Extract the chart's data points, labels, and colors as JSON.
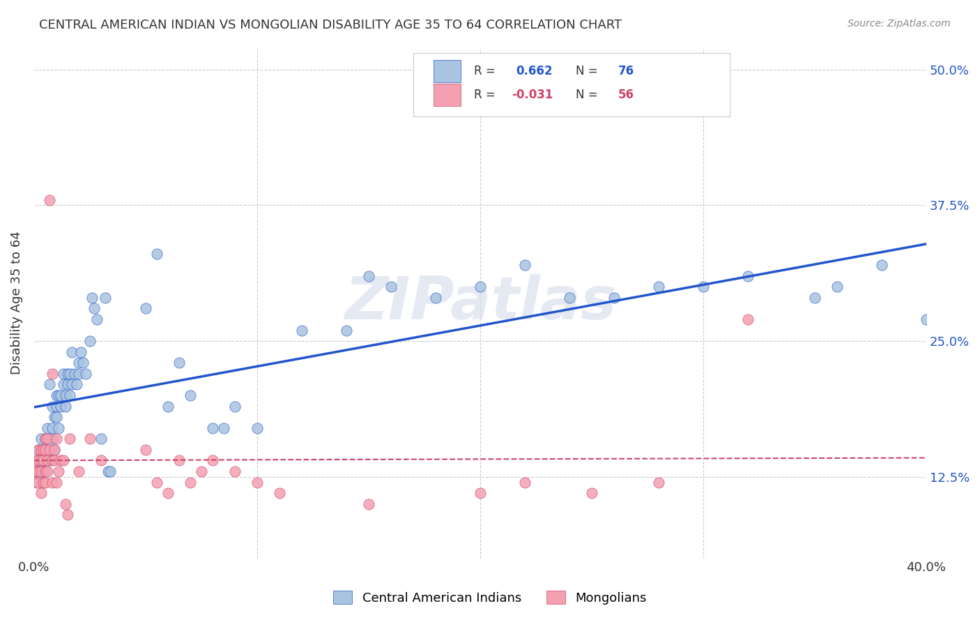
{
  "title": "CENTRAL AMERICAN INDIAN VS MONGOLIAN DISABILITY AGE 35 TO 64 CORRELATION CHART",
  "source": "Source: ZipAtlas.com",
  "ylabel": "Disability Age 35 to 64",
  "legend_label1": "Central American Indians",
  "legend_label2": "Mongolians",
  "r1": 0.662,
  "n1": 76,
  "r2": -0.031,
  "n2": 56,
  "color_blue": "#a8c4e0",
  "color_pink": "#f4a0b0",
  "line_color_blue": "#2255cc",
  "line_color_pink": "#cc4466",
  "watermark": "ZIPatlas",
  "blue_points_x": [
    0.001,
    0.002,
    0.002,
    0.003,
    0.003,
    0.004,
    0.004,
    0.005,
    0.005,
    0.005,
    0.006,
    0.006,
    0.007,
    0.007,
    0.008,
    0.008,
    0.008,
    0.009,
    0.009,
    0.01,
    0.01,
    0.01,
    0.011,
    0.011,
    0.012,
    0.012,
    0.013,
    0.013,
    0.014,
    0.014,
    0.015,
    0.015,
    0.016,
    0.016,
    0.017,
    0.017,
    0.018,
    0.019,
    0.02,
    0.02,
    0.021,
    0.022,
    0.023,
    0.025,
    0.026,
    0.027,
    0.028,
    0.03,
    0.032,
    0.033,
    0.034,
    0.05,
    0.055,
    0.06,
    0.065,
    0.07,
    0.08,
    0.085,
    0.09,
    0.1,
    0.12,
    0.14,
    0.15,
    0.16,
    0.18,
    0.2,
    0.22,
    0.24,
    0.26,
    0.28,
    0.3,
    0.32,
    0.35,
    0.36,
    0.38,
    0.4
  ],
  "blue_points_y": [
    0.13,
    0.14,
    0.15,
    0.13,
    0.16,
    0.14,
    0.13,
    0.15,
    0.14,
    0.16,
    0.17,
    0.15,
    0.14,
    0.21,
    0.17,
    0.16,
    0.19,
    0.18,
    0.15,
    0.19,
    0.2,
    0.18,
    0.2,
    0.17,
    0.19,
    0.2,
    0.22,
    0.21,
    0.19,
    0.2,
    0.21,
    0.22,
    0.2,
    0.22,
    0.21,
    0.24,
    0.22,
    0.21,
    0.23,
    0.22,
    0.24,
    0.23,
    0.22,
    0.25,
    0.29,
    0.28,
    0.27,
    0.16,
    0.29,
    0.13,
    0.13,
    0.28,
    0.33,
    0.19,
    0.23,
    0.2,
    0.17,
    0.17,
    0.19,
    0.17,
    0.26,
    0.26,
    0.31,
    0.3,
    0.29,
    0.3,
    0.32,
    0.29,
    0.29,
    0.3,
    0.3,
    0.31,
    0.29,
    0.3,
    0.32,
    0.27
  ],
  "pink_points_x": [
    0.0005,
    0.001,
    0.001,
    0.001,
    0.002,
    0.002,
    0.002,
    0.002,
    0.003,
    0.003,
    0.003,
    0.003,
    0.004,
    0.004,
    0.004,
    0.005,
    0.005,
    0.005,
    0.005,
    0.006,
    0.006,
    0.006,
    0.007,
    0.007,
    0.008,
    0.008,
    0.008,
    0.009,
    0.009,
    0.01,
    0.01,
    0.011,
    0.012,
    0.013,
    0.014,
    0.015,
    0.016,
    0.02,
    0.025,
    0.03,
    0.05,
    0.055,
    0.06,
    0.065,
    0.07,
    0.075,
    0.08,
    0.09,
    0.1,
    0.11,
    0.15,
    0.2,
    0.22,
    0.25,
    0.28,
    0.32
  ],
  "pink_points_y": [
    0.13,
    0.14,
    0.13,
    0.12,
    0.15,
    0.14,
    0.13,
    0.12,
    0.15,
    0.14,
    0.13,
    0.11,
    0.15,
    0.14,
    0.12,
    0.16,
    0.15,
    0.13,
    0.12,
    0.16,
    0.14,
    0.13,
    0.38,
    0.15,
    0.14,
    0.22,
    0.12,
    0.15,
    0.14,
    0.16,
    0.12,
    0.13,
    0.14,
    0.14,
    0.1,
    0.09,
    0.16,
    0.13,
    0.16,
    0.14,
    0.15,
    0.12,
    0.11,
    0.14,
    0.12,
    0.13,
    0.14,
    0.13,
    0.12,
    0.11,
    0.1,
    0.11,
    0.12,
    0.11,
    0.12,
    0.27
  ],
  "xlim": [
    0.0,
    0.4
  ],
  "ylim": [
    0.05,
    0.52
  ],
  "yticks": [
    0.125,
    0.25,
    0.375,
    0.5
  ],
  "ytick_labels": [
    "12.5%",
    "25.0%",
    "37.5%",
    "50.0%"
  ],
  "xticks": [
    0.0,
    0.4
  ],
  "xtick_labels": [
    "0.0%",
    "40.0%"
  ]
}
